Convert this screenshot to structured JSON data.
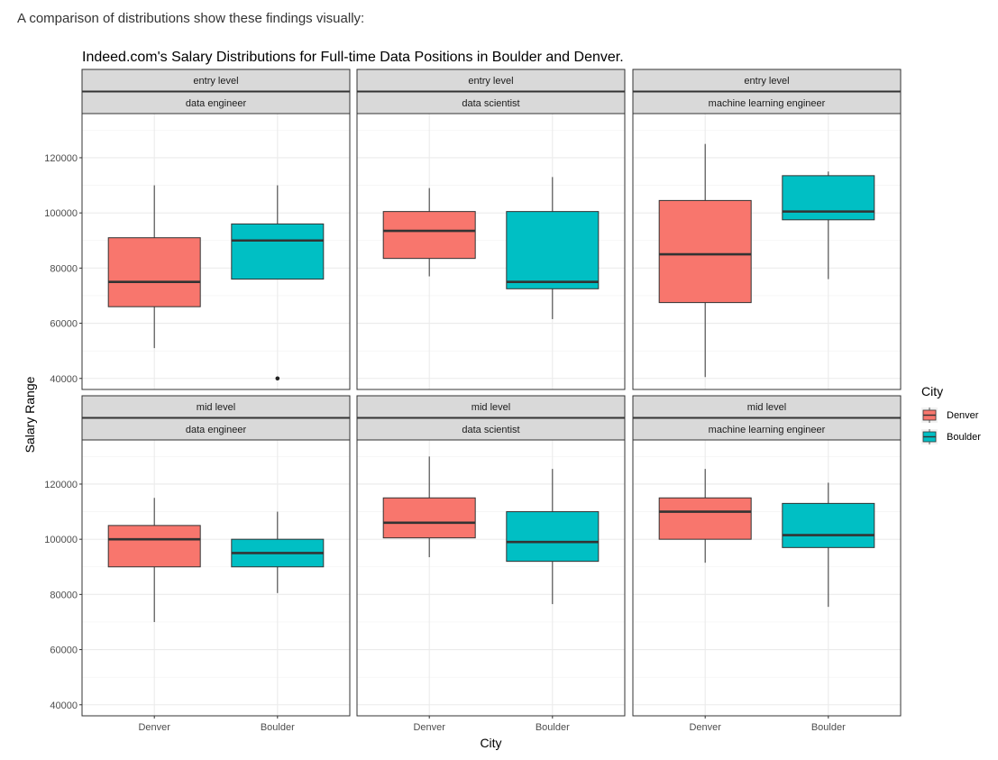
{
  "intro_text": "A comparison of distributions show these findings visually:",
  "chart_data": {
    "type": "boxplot",
    "title": "Indeed.com's Salary Distributions for Full-time Data Positions in Boulder and Denver.",
    "xlabel": "City",
    "ylabel": "Salary Range",
    "categories": [
      "Denver",
      "Boulder"
    ],
    "ylim": [
      36000,
      136000
    ],
    "yticks": [
      40000,
      60000,
      80000,
      100000,
      120000
    ],
    "ytick_labels": [
      "40000",
      "60000",
      "80000",
      "100000",
      "120000"
    ],
    "grid": true,
    "legend": {
      "title": "City",
      "position": "right",
      "entries": [
        {
          "label": "Denver",
          "color": "#F8766D"
        },
        {
          "label": "Boulder",
          "color": "#00BFC4"
        }
      ]
    },
    "facets": [
      {
        "level": "entry level",
        "role": "data engineer",
        "boxes": [
          {
            "city": "Denver",
            "min": 51000,
            "q1": 66000,
            "median": 75000,
            "q3": 91000,
            "max": 110000,
            "outliers": []
          },
          {
            "city": "Boulder",
            "min": 76000,
            "q1": 76000,
            "median": 90000,
            "q3": 96000,
            "max": 110000,
            "outliers": [
              40000
            ]
          }
        ]
      },
      {
        "level": "entry level",
        "role": "data scientist",
        "boxes": [
          {
            "city": "Denver",
            "min": 77000,
            "q1": 83500,
            "median": 93500,
            "q3": 100500,
            "max": 109000,
            "outliers": []
          },
          {
            "city": "Boulder",
            "min": 61500,
            "q1": 72500,
            "median": 75000,
            "q3": 100500,
            "max": 113000,
            "outliers": []
          }
        ]
      },
      {
        "level": "entry level",
        "role": "machine learning engineer",
        "boxes": [
          {
            "city": "Denver",
            "min": 40500,
            "q1": 67500,
            "median": 85000,
            "q3": 104500,
            "max": 125000,
            "outliers": []
          },
          {
            "city": "Boulder",
            "min": 76000,
            "q1": 97500,
            "median": 100500,
            "q3": 113500,
            "max": 115000,
            "outliers": []
          }
        ]
      },
      {
        "level": "mid level",
        "role": "data engineer",
        "boxes": [
          {
            "city": "Denver",
            "min": 70000,
            "q1": 90000,
            "median": 100000,
            "q3": 105000,
            "max": 115000,
            "outliers": []
          },
          {
            "city": "Boulder",
            "min": 80500,
            "q1": 90000,
            "median": 95000,
            "q3": 100000,
            "max": 110000,
            "outliers": []
          }
        ]
      },
      {
        "level": "mid level",
        "role": "data scientist",
        "boxes": [
          {
            "city": "Denver",
            "min": 93500,
            "q1": 100500,
            "median": 106000,
            "q3": 115000,
            "max": 130000,
            "outliers": []
          },
          {
            "city": "Boulder",
            "min": 76500,
            "q1": 92000,
            "median": 99000,
            "q3": 110000,
            "max": 125500,
            "outliers": []
          }
        ]
      },
      {
        "level": "mid level",
        "role": "machine learning engineer",
        "boxes": [
          {
            "city": "Denver",
            "min": 91500,
            "q1": 100000,
            "median": 110000,
            "q3": 115000,
            "max": 125500,
            "outliers": []
          },
          {
            "city": "Boulder",
            "min": 75500,
            "q1": 97000,
            "median": 101500,
            "q3": 113000,
            "max": 120500,
            "outliers": []
          }
        ]
      }
    ]
  }
}
